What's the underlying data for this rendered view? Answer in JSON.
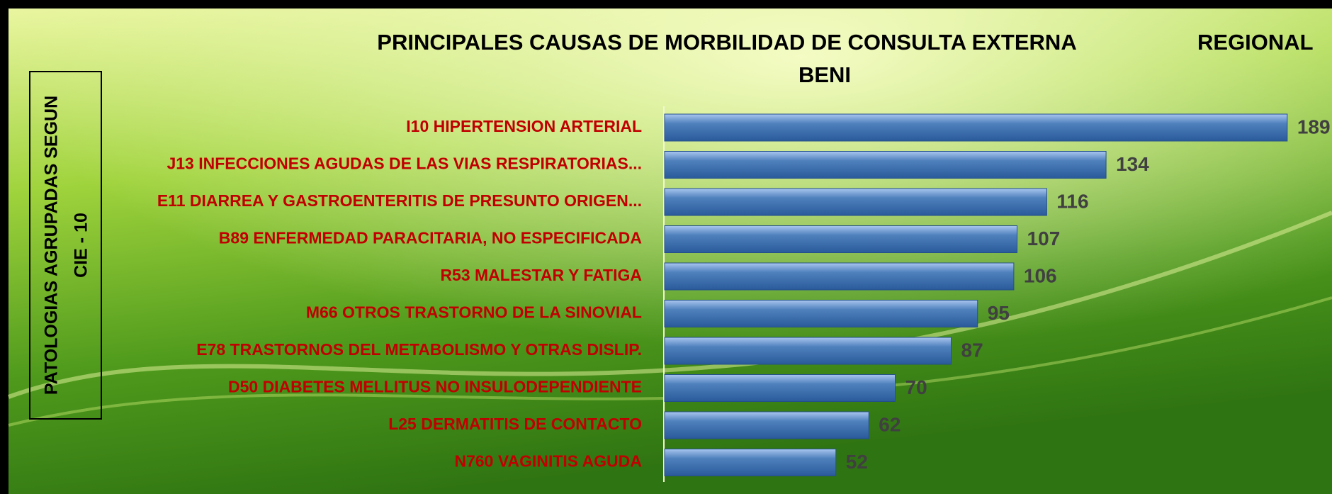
{
  "chart_data": {
    "type": "bar",
    "orientation": "horizontal",
    "title": [
      "PRINCIPALES CAUSAS DE MORBILIDAD DE CONSULTA EXTERNA",
      "REGIONAL",
      "BENI"
    ],
    "y_label": [
      "PATOLOGIAS AGRUPADAS SEGUN",
      "CIE - 10"
    ],
    "categories": [
      "I10  HIPERTENSION ARTERIAL",
      "J13  INFECCIONES AGUDAS DE LAS VIAS RESPIRATORIAS...",
      "E11  DIARREA Y GASTROENTERITIS DE PRESUNTO ORIGEN...",
      "B89  ENFERMEDAD PARACITARIA, NO ESPECIFICADA",
      "R53  MALESTAR Y FATIGA",
      "M66  OTROS TRASTORNO DE LA SINOVIAL",
      "E78  TRASTORNOS DEL METABOLISMO Y OTRAS DISLIP.",
      "D50  DIABETES MELLITUS NO INSULODEPENDIENTE",
      "L25  DERMATITIS DE CONTACTO",
      "N760  VAGINITIS AGUDA"
    ],
    "values": [
      189,
      134,
      116,
      107,
      106,
      95,
      87,
      70,
      62,
      52
    ],
    "color": "#4f81bd"
  }
}
